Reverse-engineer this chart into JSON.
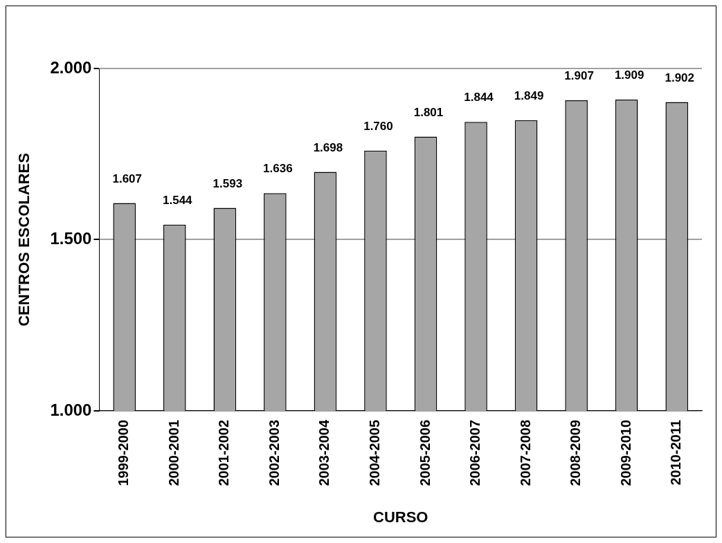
{
  "chart_data": {
    "type": "bar",
    "xlabel": "CURSO",
    "ylabel": "CENTROS ESCOLARES",
    "categories": [
      "1999-2000",
      "2000-2001",
      "2001-2002",
      "2002-2003",
      "2003-2004",
      "2004-2005",
      "2005-2006",
      "2006-2007",
      "2007-2008",
      "2008-2009",
      "2009-2010",
      "2010-2011"
    ],
    "values": [
      1607,
      1544,
      1593,
      1636,
      1698,
      1760,
      1801,
      1844,
      1849,
      1907,
      1909,
      1902
    ],
    "value_labels": [
      "1.607",
      "1.544",
      "1.593",
      "1.636",
      "1.698",
      "1.760",
      "1.801",
      "1.844",
      "1.849",
      "1.907",
      "1.909",
      "1.902"
    ],
    "color": "#a6a6a6",
    "ylim": [
      1000,
      2000
    ],
    "yticks": [
      {
        "value": 1000,
        "label": "1.000"
      },
      {
        "value": 1500,
        "label": "1.500"
      },
      {
        "value": 2000,
        "label": "2.000"
      }
    ],
    "grid": "y",
    "legend": false
  }
}
